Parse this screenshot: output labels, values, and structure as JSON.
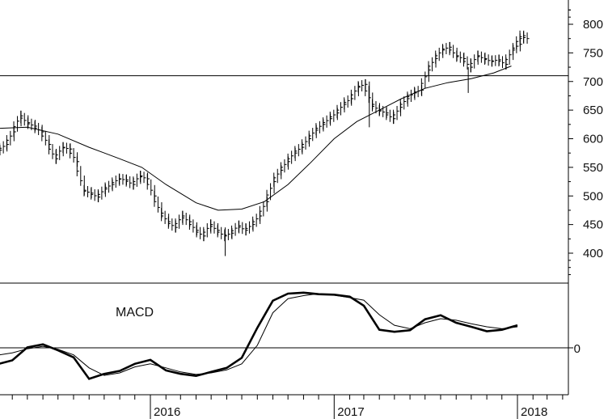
{
  "chart_data": [
    {
      "type": "ohlc",
      "title": "",
      "xlabel": "",
      "ylabel": "",
      "x_range": [
        "2015-03-01",
        "2018-01-28"
      ],
      "ylim": [
        375,
        830
      ],
      "y_ticks": [
        "400",
        "450",
        "500",
        "550",
        "600",
        "650",
        "700",
        "750",
        "800"
      ],
      "x_ticks": [
        "2016",
        "2017",
        "2018"
      ],
      "x_tick_dates": [
        "2016-01-01",
        "2017-01-01",
        "2018-01-01"
      ],
      "horizontal_line": 710,
      "moving_average": [
        [
          "2015-03-01",
          618
        ],
        [
          "2015-05-01",
          620
        ],
        [
          "2015-07-01",
          608
        ],
        [
          "2015-09-01",
          585
        ],
        [
          "2015-11-01",
          565
        ],
        [
          "2015-12-15",
          550
        ],
        [
          "2016-02-01",
          520
        ],
        [
          "2016-04-01",
          488
        ],
        [
          "2016-05-15",
          475
        ],
        [
          "2016-07-01",
          477
        ],
        [
          "2016-08-15",
          490
        ],
        [
          "2016-10-01",
          520
        ],
        [
          "2016-11-15",
          558
        ],
        [
          "2017-01-01",
          600
        ],
        [
          "2017-02-15",
          630
        ],
        [
          "2017-04-01",
          650
        ],
        [
          "2017-05-15",
          670
        ],
        [
          "2017-07-01",
          688
        ],
        [
          "2017-08-15",
          698
        ],
        [
          "2017-10-01",
          705
        ],
        [
          "2017-11-15",
          715
        ],
        [
          "2017-12-20",
          727
        ]
      ],
      "price_closes": [
        [
          "2015-03-01",
          580
        ],
        [
          "2015-03-15",
          590
        ],
        [
          "2015-03-29",
          612
        ],
        [
          "2015-04-12",
          640
        ],
        [
          "2015-04-26",
          628
        ],
        [
          "2015-05-10",
          622
        ],
        [
          "2015-05-24",
          612
        ],
        [
          "2015-06-07",
          590
        ],
        [
          "2015-06-21",
          565
        ],
        [
          "2015-07-05",
          585
        ],
        [
          "2015-07-19",
          582
        ],
        [
          "2015-08-02",
          560
        ],
        [
          "2015-08-16",
          510
        ],
        [
          "2015-08-30",
          505
        ],
        [
          "2015-09-13",
          498
        ],
        [
          "2015-09-27",
          512
        ],
        [
          "2015-10-11",
          520
        ],
        [
          "2015-10-25",
          530
        ],
        [
          "2015-11-08",
          528
        ],
        [
          "2015-11-22",
          520
        ],
        [
          "2015-12-06",
          535
        ],
        [
          "2015-12-20",
          530
        ],
        [
          "2016-01-03",
          500
        ],
        [
          "2016-01-17",
          470
        ],
        [
          "2016-01-31",
          455
        ],
        [
          "2016-02-14",
          445
        ],
        [
          "2016-02-28",
          465
        ],
        [
          "2016-03-13",
          455
        ],
        [
          "2016-03-27",
          440
        ],
        [
          "2016-04-10",
          430
        ],
        [
          "2016-04-24",
          450
        ],
        [
          "2016-05-08",
          440
        ],
        [
          "2016-05-22",
          430
        ],
        [
          "2016-06-05",
          435
        ],
        [
          "2016-06-19",
          448
        ],
        [
          "2016-07-03",
          440
        ],
        [
          "2016-07-17",
          450
        ],
        [
          "2016-07-31",
          465
        ],
        [
          "2016-08-14",
          490
        ],
        [
          "2016-08-28",
          525
        ],
        [
          "2016-09-11",
          545
        ],
        [
          "2016-09-25",
          560
        ],
        [
          "2016-10-09",
          575
        ],
        [
          "2016-10-23",
          585
        ],
        [
          "2016-11-06",
          600
        ],
        [
          "2016-11-20",
          615
        ],
        [
          "2016-12-04",
          625
        ],
        [
          "2016-12-18",
          635
        ],
        [
          "2017-01-01",
          645
        ],
        [
          "2017-01-15",
          660
        ],
        [
          "2017-01-29",
          670
        ],
        [
          "2017-02-12",
          690
        ],
        [
          "2017-02-26",
          695
        ],
        [
          "2017-03-12",
          660
        ],
        [
          "2017-03-26",
          650
        ],
        [
          "2017-04-09",
          645
        ],
        [
          "2017-04-23",
          635
        ],
        [
          "2017-05-07",
          655
        ],
        [
          "2017-05-21",
          670
        ],
        [
          "2017-06-04",
          680
        ],
        [
          "2017-06-18",
          685
        ],
        [
          "2017-07-02",
          720
        ],
        [
          "2017-07-16",
          740
        ],
        [
          "2017-07-30",
          755
        ],
        [
          "2017-08-13",
          760
        ],
        [
          "2017-08-27",
          745
        ],
        [
          "2017-09-10",
          740
        ],
        [
          "2017-09-24",
          725
        ],
        [
          "2017-10-08",
          745
        ],
        [
          "2017-10-22",
          740
        ],
        [
          "2017-11-05",
          735
        ],
        [
          "2017-11-19",
          738
        ],
        [
          "2017-12-03",
          730
        ],
        [
          "2017-12-17",
          755
        ],
        [
          "2017-12-31",
          765
        ],
        [
          "2018-01-07",
          780
        ],
        [
          "2018-01-14",
          775
        ]
      ],
      "macd": {
        "label": "MACD",
        "zero_label": "0",
        "ylim": [
          -80,
          140
        ],
        "series": [
          {
            "role": "macd",
            "values": [
              [
                "2015-03-01",
                -33
              ],
              [
                "2015-04-01",
                -25
              ],
              [
                "2015-05-01",
                1
              ],
              [
                "2015-06-01",
                7
              ],
              [
                "2015-07-01",
                -5
              ],
              [
                "2015-08-01",
                -19
              ],
              [
                "2015-09-01",
                -62
              ],
              [
                "2015-10-01",
                -52
              ],
              [
                "2015-11-01",
                -46
              ],
              [
                "2015-12-01",
                -32
              ],
              [
                "2016-01-01",
                -24
              ],
              [
                "2016-02-01",
                -45
              ],
              [
                "2016-03-01",
                -52
              ],
              [
                "2016-04-01",
                -56
              ],
              [
                "2016-05-01",
                -48
              ],
              [
                "2016-06-01",
                -40
              ],
              [
                "2016-07-01",
                -20
              ],
              [
                "2016-08-01",
                40
              ],
              [
                "2016-09-01",
                94
              ],
              [
                "2016-10-01",
                108
              ],
              [
                "2016-11-01",
                110
              ],
              [
                "2016-12-01",
                107
              ],
              [
                "2017-01-01",
                106
              ],
              [
                "2017-02-01",
                102
              ],
              [
                "2017-03-01",
                84
              ],
              [
                "2017-04-01",
                36
              ],
              [
                "2017-05-01",
                32
              ],
              [
                "2017-06-01",
                35
              ],
              [
                "2017-07-01",
                57
              ],
              [
                "2017-08-01",
                65
              ],
              [
                "2017-09-01",
                50
              ],
              [
                "2017-10-01",
                42
              ],
              [
                "2017-11-01",
                33
              ],
              [
                "2017-12-01",
                36
              ],
              [
                "2018-01-01",
                45
              ]
            ]
          },
          {
            "role": "signal",
            "values": [
              [
                "2015-03-01",
                -15
              ],
              [
                "2015-04-01",
                -10
              ],
              [
                "2015-05-01",
                -2
              ],
              [
                "2015-06-01",
                3
              ],
              [
                "2015-07-01",
                -3
              ],
              [
                "2015-08-01",
                -14
              ],
              [
                "2015-09-01",
                -40
              ],
              [
                "2015-10-01",
                -55
              ],
              [
                "2015-11-01",
                -50
              ],
              [
                "2015-12-01",
                -38
              ],
              [
                "2016-01-01",
                -32
              ],
              [
                "2016-02-01",
                -40
              ],
              [
                "2016-03-01",
                -48
              ],
              [
                "2016-04-01",
                -53
              ],
              [
                "2016-05-01",
                -50
              ],
              [
                "2016-06-01",
                -44
              ],
              [
                "2016-07-01",
                -32
              ],
              [
                "2016-08-01",
                5
              ],
              [
                "2016-09-01",
                70
              ],
              [
                "2016-10-01",
                98
              ],
              [
                "2016-11-01",
                104
              ],
              [
                "2016-12-01",
                108
              ],
              [
                "2017-01-01",
                105
              ],
              [
                "2017-02-01",
                100
              ],
              [
                "2017-03-01",
                95
              ],
              [
                "2017-04-01",
                66
              ],
              [
                "2017-05-01",
                45
              ],
              [
                "2017-06-01",
                38
              ],
              [
                "2017-07-01",
                50
              ],
              [
                "2017-08-01",
                58
              ],
              [
                "2017-09-01",
                55
              ],
              [
                "2017-10-01",
                48
              ],
              [
                "2017-11-01",
                42
              ],
              [
                "2017-12-01",
                38
              ],
              [
                "2018-01-01",
                42
              ]
            ]
          }
        ]
      }
    }
  ]
}
